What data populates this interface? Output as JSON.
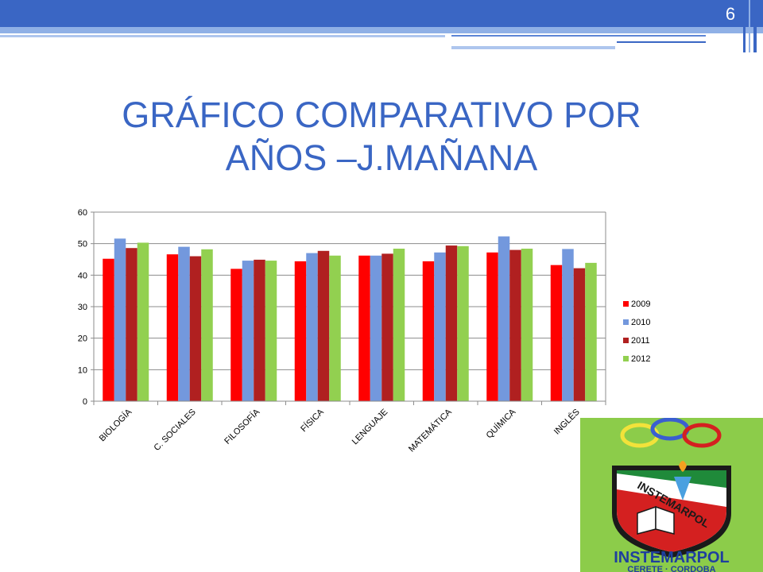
{
  "slide": {
    "page_number": "6",
    "title_line1": "GRÁFICO COMPARATIVO POR",
    "title_line2": "AÑOS –J.MAÑANA",
    "accent_color": "#3a66c4"
  },
  "logo": {
    "name": "INSTEMARPOL",
    "banner_text": "INSTEMARPOL",
    "location": "CERETE · CORDOBA",
    "background_color": "#8ccc4a"
  },
  "chart_data": {
    "type": "bar",
    "categories": [
      "BIOLOGÍA",
      "C. SOCIALES",
      "FILOSOFÍA",
      "FÍSICA",
      "LENGUAJE",
      "MATEMÁTICA",
      "QUÍMICA",
      "INGLÉS"
    ],
    "series": [
      {
        "name": "2009",
        "color": "#ff0000",
        "values": [
          45.2,
          46.6,
          42.0,
          44.4,
          46.2,
          44.4,
          47.2,
          43.2
        ]
      },
      {
        "name": "2010",
        "color": "#7398dd",
        "values": [
          51.6,
          49.0,
          44.6,
          47.0,
          46.2,
          47.2,
          52.3,
          48.3
        ]
      },
      {
        "name": "2011",
        "color": "#b02020",
        "values": [
          48.6,
          46.0,
          44.9,
          47.7,
          46.8,
          49.4,
          48.0,
          42.2
        ]
      },
      {
        "name": "2012",
        "color": "#92d050",
        "values": [
          50.3,
          48.2,
          44.6,
          46.2,
          48.4,
          49.2,
          48.4,
          43.9
        ]
      }
    ],
    "ylim": [
      0,
      60
    ],
    "yticks": [
      0,
      10,
      20,
      30,
      40,
      50,
      60
    ],
    "grid": true,
    "legend": "right"
  }
}
